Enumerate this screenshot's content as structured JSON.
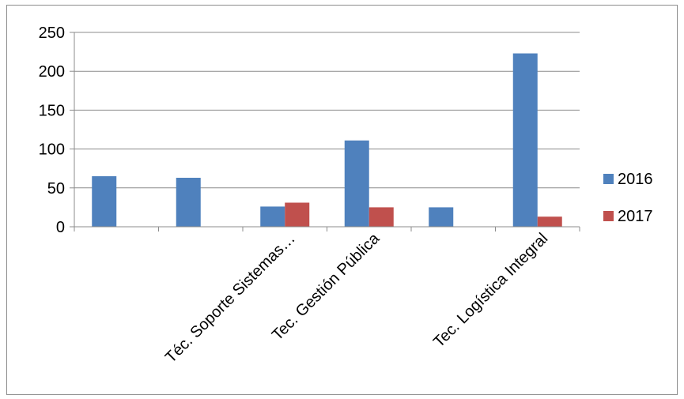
{
  "chart_data": {
    "type": "bar",
    "title": "",
    "xlabel": "",
    "ylabel": "",
    "ylim": [
      0,
      250
    ],
    "yticks": [
      0,
      50,
      100,
      150,
      200,
      250
    ],
    "grid": true,
    "legend_position": "right",
    "categories": [
      "",
      "",
      "Téc. Soporte Sistemas…",
      "Tec. Gestión Pública",
      "",
      "Tec. Logística Integral"
    ],
    "series": [
      {
        "name": "2016",
        "color": "#4f81bd",
        "values": [
          65,
          63,
          26,
          111,
          25,
          223
        ]
      },
      {
        "name": "2017",
        "color": "#c0504d",
        "values": [
          0,
          0,
          31,
          25,
          0,
          13
        ]
      }
    ]
  }
}
